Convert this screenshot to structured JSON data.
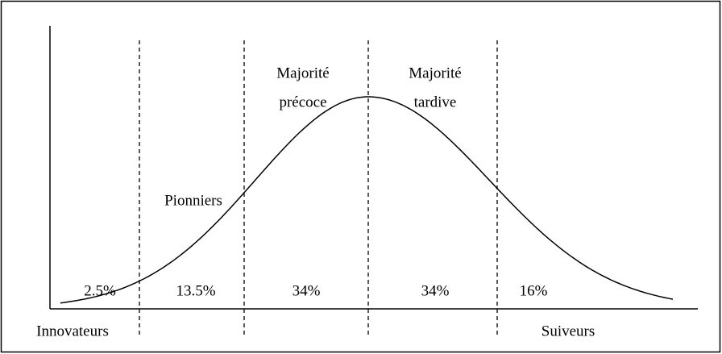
{
  "segments": [
    {
      "label": [
        "Innovateurs"
      ],
      "share": "2.5%"
    },
    {
      "label": [
        "Pionniers"
      ],
      "share": "13.5%"
    },
    {
      "label": [
        "Majorité",
        "précoce"
      ],
      "share": "34%"
    },
    {
      "label": [
        "Majorité",
        "tardive"
      ],
      "share": "34%"
    },
    {
      "label": [
        "Suiveurs"
      ],
      "share": "16%"
    }
  ]
}
